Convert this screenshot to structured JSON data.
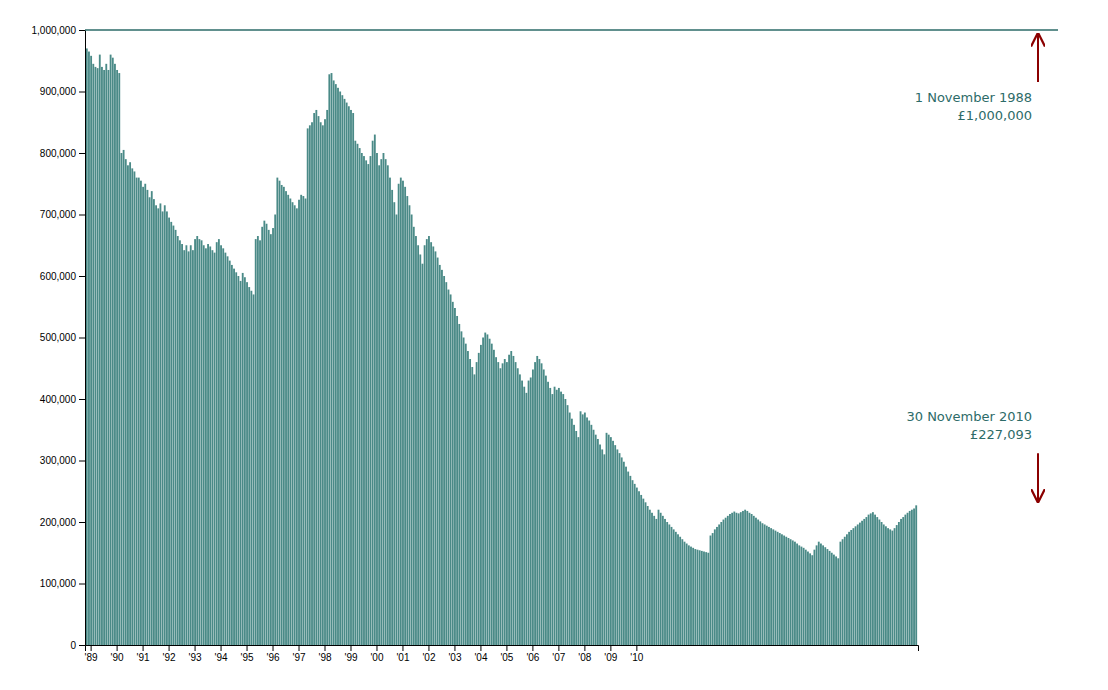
{
  "chart_data": {
    "type": "bar",
    "color": "#4a8a87",
    "grid": false,
    "ylim": [
      0,
      1000000
    ],
    "yticks": [
      0,
      {
        "value": 100000,
        "label": "100,000"
      },
      {
        "value": 200000,
        "label": "200,000"
      },
      {
        "value": 300000,
        "label": "300,000"
      },
      {
        "value": 400000,
        "label": "400,000"
      },
      {
        "value": 500000,
        "label": "500,000"
      },
      {
        "value": 600000,
        "label": "600,000"
      },
      {
        "value": 700000,
        "label": "700,000"
      },
      {
        "value": 800000,
        "label": "800,000"
      },
      {
        "value": 900000,
        "label": "900,000"
      },
      {
        "value": 1000000,
        "label": "1,000,000"
      }
    ],
    "reference_line": 1000000,
    "annotations": [
      "1 November 1988",
      "£1,000,000",
      "30 November 2010",
      "£227,093"
    ],
    "categories": [
      null,
      null,
      "'89",
      null,
      null,
      null,
      null,
      null,
      null,
      null,
      null,
      null,
      null,
      null,
      "'90",
      null,
      null,
      null,
      null,
      null,
      null,
      null,
      null,
      null,
      null,
      null,
      "'91",
      null,
      null,
      null,
      null,
      null,
      null,
      null,
      null,
      null,
      null,
      null,
      "'92",
      null,
      null,
      null,
      null,
      null,
      null,
      null,
      null,
      null,
      null,
      null,
      "'93",
      null,
      null,
      null,
      null,
      null,
      null,
      null,
      null,
      null,
      null,
      null,
      "'94",
      null,
      null,
      null,
      null,
      null,
      null,
      null,
      null,
      null,
      null,
      null,
      "'95",
      null,
      null,
      null,
      null,
      null,
      null,
      null,
      null,
      null,
      null,
      null,
      "'96",
      null,
      null,
      null,
      null,
      null,
      null,
      null,
      null,
      null,
      null,
      null,
      "'97",
      null,
      null,
      null,
      null,
      null,
      null,
      null,
      null,
      null,
      null,
      null,
      "'98",
      null,
      null,
      null,
      null,
      null,
      null,
      null,
      null,
      null,
      null,
      null,
      "'99",
      null,
      null,
      null,
      null,
      null,
      null,
      null,
      null,
      null,
      null,
      null,
      "'00",
      null,
      null,
      null,
      null,
      null,
      null,
      null,
      null,
      null,
      null,
      null,
      "'01",
      null,
      null,
      null,
      null,
      null,
      null,
      null,
      null,
      null,
      null,
      null,
      "'02",
      null,
      null,
      null,
      null,
      null,
      null,
      null,
      null,
      null,
      null,
      null,
      "'03",
      null,
      null,
      null,
      null,
      null,
      null,
      null,
      null,
      null,
      null,
      null,
      "'04",
      null,
      null,
      null,
      null,
      null,
      null,
      null,
      null,
      null,
      null,
      null,
      "'05",
      null,
      null,
      null,
      null,
      null,
      null,
      null,
      null,
      null,
      null,
      null,
      "'06",
      null,
      null,
      null,
      null,
      null,
      null,
      null,
      null,
      null,
      null,
      null,
      "'07",
      null,
      null,
      null,
      null,
      null,
      null,
      null,
      null,
      null,
      null,
      null,
      "'08",
      null,
      null,
      null,
      null,
      null,
      null,
      null,
      null,
      null,
      null,
      null,
      "'09",
      null,
      null,
      null,
      null,
      null,
      null,
      null,
      null,
      null,
      null,
      null,
      "'10",
      null,
      null,
      null,
      null,
      null,
      null,
      null,
      null,
      null,
      null,
      null,
      null,
      null,
      null,
      null,
      null,
      null,
      null,
      null,
      null,
      null,
      null,
      null,
      null,
      null,
      null,
      null,
      null,
      null,
      null,
      null,
      null,
      null,
      null,
      null,
      null,
      null,
      null,
      null,
      null,
      null,
      null,
      null,
      null,
      null,
      null,
      null,
      null,
      null,
      null,
      null,
      null,
      null,
      null,
      null,
      null,
      null,
      null,
      null,
      null,
      null,
      null,
      null,
      null,
      null,
      null,
      null,
      null,
      null,
      null,
      null,
      null,
      null,
      null,
      null,
      null,
      null,
      null,
      null,
      null,
      null,
      null,
      null,
      null,
      null,
      null,
      null,
      null,
      null,
      null,
      null,
      null,
      null,
      null,
      null,
      null,
      null,
      null,
      null,
      null,
      null,
      null,
      null,
      null,
      null,
      null,
      null,
      null,
      null,
      null,
      null,
      null,
      null,
      null,
      null,
      null,
      null,
      null,
      null,
      null,
      null,
      null,
      null,
      null,
      null,
      null,
      null,
      null,
      null
    ],
    "values": [
      970000,
      965000,
      958000,
      945000,
      940000,
      938000,
      960000,
      940000,
      935000,
      945000,
      935000,
      960000,
      955000,
      945000,
      935000,
      930000,
      800000,
      805000,
      790000,
      780000,
      785000,
      775000,
      770000,
      760000,
      760000,
      755000,
      745000,
      750000,
      740000,
      728000,
      738000,
      725000,
      715000,
      710000,
      718000,
      705000,
      715000,
      705000,
      695000,
      688000,
      682000,
      675000,
      665000,
      658000,
      652000,
      642000,
      650000,
      640000,
      650000,
      642000,
      660000,
      665000,
      660000,
      658000,
      650000,
      645000,
      652000,
      648000,
      642000,
      638000,
      655000,
      660000,
      650000,
      645000,
      638000,
      632000,
      625000,
      618000,
      612000,
      606000,
      600000,
      592000,
      605000,
      598000,
      590000,
      582000,
      576000,
      570000,
      660000,
      665000,
      658000,
      680000,
      690000,
      685000,
      675000,
      668000,
      678000,
      700000,
      760000,
      755000,
      748000,
      745000,
      738000,
      732000,
      726000,
      720000,
      715000,
      710000,
      724000,
      732000,
      730000,
      726000,
      840000,
      845000,
      850000,
      865000,
      870000,
      860000,
      850000,
      845000,
      855000,
      870000,
      928000,
      930000,
      918000,
      912000,
      906000,
      900000,
      894000,
      888000,
      882000,
      876000,
      870000,
      865000,
      820000,
      815000,
      808000,
      800000,
      795000,
      788000,
      782000,
      795000,
      820000,
      830000,
      800000,
      780000,
      790000,
      800000,
      790000,
      780000,
      760000,
      740000,
      720000,
      700000,
      750000,
      760000,
      755000,
      745000,
      730000,
      715000,
      700000,
      680000,
      665000,
      650000,
      635000,
      620000,
      650000,
      660000,
      665000,
      655000,
      648000,
      640000,
      630000,
      618000,
      610000,
      600000,
      590000,
      578000,
      570000,
      558000,
      548000,
      535000,
      522000,
      510000,
      500000,
      490000,
      478000,
      465000,
      452000,
      440000,
      460000,
      475000,
      488000,
      500000,
      508000,
      505000,
      498000,
      490000,
      480000,
      468000,
      460000,
      450000,
      458000,
      465000,
      460000,
      472000,
      478000,
      470000,
      460000,
      450000,
      440000,
      430000,
      420000,
      410000,
      430000,
      435000,
      448000,
      460000,
      470000,
      465000,
      458000,
      448000,
      438000,
      428000,
      418000,
      408000,
      420000,
      415000,
      418000,
      412000,
      408000,
      400000,
      390000,
      378000,
      368000,
      358000,
      348000,
      338000,
      380000,
      375000,
      378000,
      370000,
      365000,
      358000,
      350000,
      342000,
      335000,
      326000,
      318000,
      310000,
      345000,
      342000,
      338000,
      332000,
      325000,
      318000,
      312000,
      305000,
      298000,
      290000,
      282000,
      275000,
      268000,
      262000,
      256000,
      250000,
      244000,
      238000,
      232000,
      226000,
      220000,
      215000,
      210000,
      205000,
      220000,
      215000,
      210000,
      205000,
      200000,
      196000,
      192000,
      188000,
      184000,
      180000,
      176000,
      172000,
      168000,
      165000,
      162000,
      160000,
      158000,
      156000,
      155000,
      154000,
      153000,
      152000,
      151000,
      150000,
      178000,
      182000,
      188000,
      192000,
      196000,
      200000,
      204000,
      207000,
      210000,
      213000,
      215000,
      217000,
      215000,
      214000,
      216000,
      218000,
      220000,
      218000,
      215000,
      213000,
      210000,
      207000,
      204000,
      201000,
      198000,
      196000,
      194000,
      192000,
      190000,
      188000,
      186000,
      184000,
      182000,
      180000,
      178000,
      176000,
      174000,
      172000,
      170000,
      168000,
      165000,
      162000,
      160000,
      158000,
      155000,
      152000,
      149000,
      146000,
      155000,
      162000,
      168000,
      165000,
      162000,
      159000,
      156000,
      153000,
      150000,
      147000,
      144000,
      141000,
      168000,
      172000,
      176000,
      180000,
      184000,
      187000,
      190000,
      193000,
      196000,
      199000,
      202000,
      205000,
      208000,
      212000,
      214000,
      216000,
      212000,
      208000,
      204000,
      200000,
      196000,
      193000,
      190000,
      188000,
      186000,
      190000,
      195000,
      200000,
      205000,
      208000,
      212000,
      215000,
      218000,
      220000,
      222000,
      227093
    ]
  }
}
